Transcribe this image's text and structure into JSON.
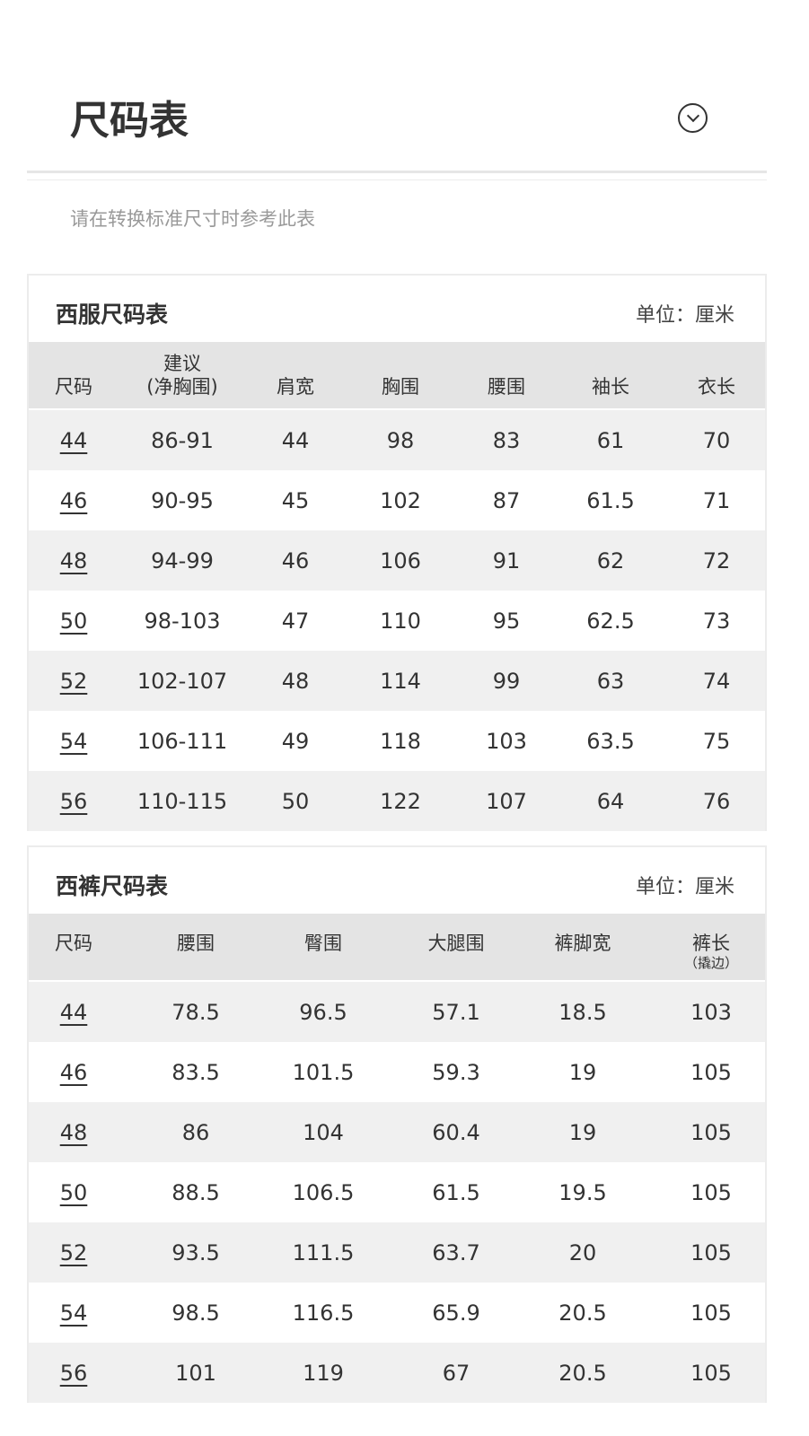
{
  "header": {
    "title": "尺码表",
    "subtitle": "请在转换标准尺寸时参考此表",
    "toggle_icon": "chevron-down-circle-icon"
  },
  "suit": {
    "title": "西服尺码表",
    "unit": "单位：厘米",
    "columns": [
      "尺码",
      "建议",
      "(净胸围)",
      "肩宽",
      "胸围",
      "腰围",
      "袖长",
      "衣长"
    ],
    "rows": [
      [
        "44",
        "86-91",
        "44",
        "98",
        "83",
        "61",
        "70"
      ],
      [
        "46",
        "90-95",
        "45",
        "102",
        "87",
        "61.5",
        "71"
      ],
      [
        "48",
        "94-99",
        "46",
        "106",
        "91",
        "62",
        "72"
      ],
      [
        "50",
        "98-103",
        "47",
        "110",
        "95",
        "62.5",
        "73"
      ],
      [
        "52",
        "102-107",
        "48",
        "114",
        "99",
        "63",
        "74"
      ],
      [
        "54",
        "106-111",
        "49",
        "118",
        "103",
        "63.5",
        "75"
      ],
      [
        "56",
        "110-115",
        "50",
        "122",
        "107",
        "64",
        "76"
      ]
    ]
  },
  "pants": {
    "title": "西裤尺码表",
    "unit": "单位：厘米",
    "columns": [
      "尺码",
      "腰围",
      "臀围",
      "大腿围",
      "裤脚宽",
      "裤长",
      "（撬边）"
    ],
    "rows": [
      [
        "44",
        "78.5",
        "96.5",
        "57.1",
        "18.5",
        "103"
      ],
      [
        "46",
        "83.5",
        "101.5",
        "59.3",
        "19",
        "105"
      ],
      [
        "48",
        "86",
        "104",
        "60.4",
        "19",
        "105"
      ],
      [
        "50",
        "88.5",
        "106.5",
        "61.5",
        "19.5",
        "105"
      ],
      [
        "52",
        "93.5",
        "111.5",
        "63.7",
        "20",
        "105"
      ],
      [
        "54",
        "98.5",
        "116.5",
        "65.9",
        "20.5",
        "105"
      ],
      [
        "56",
        "101",
        "119",
        "67",
        "20.5",
        "105"
      ]
    ]
  }
}
